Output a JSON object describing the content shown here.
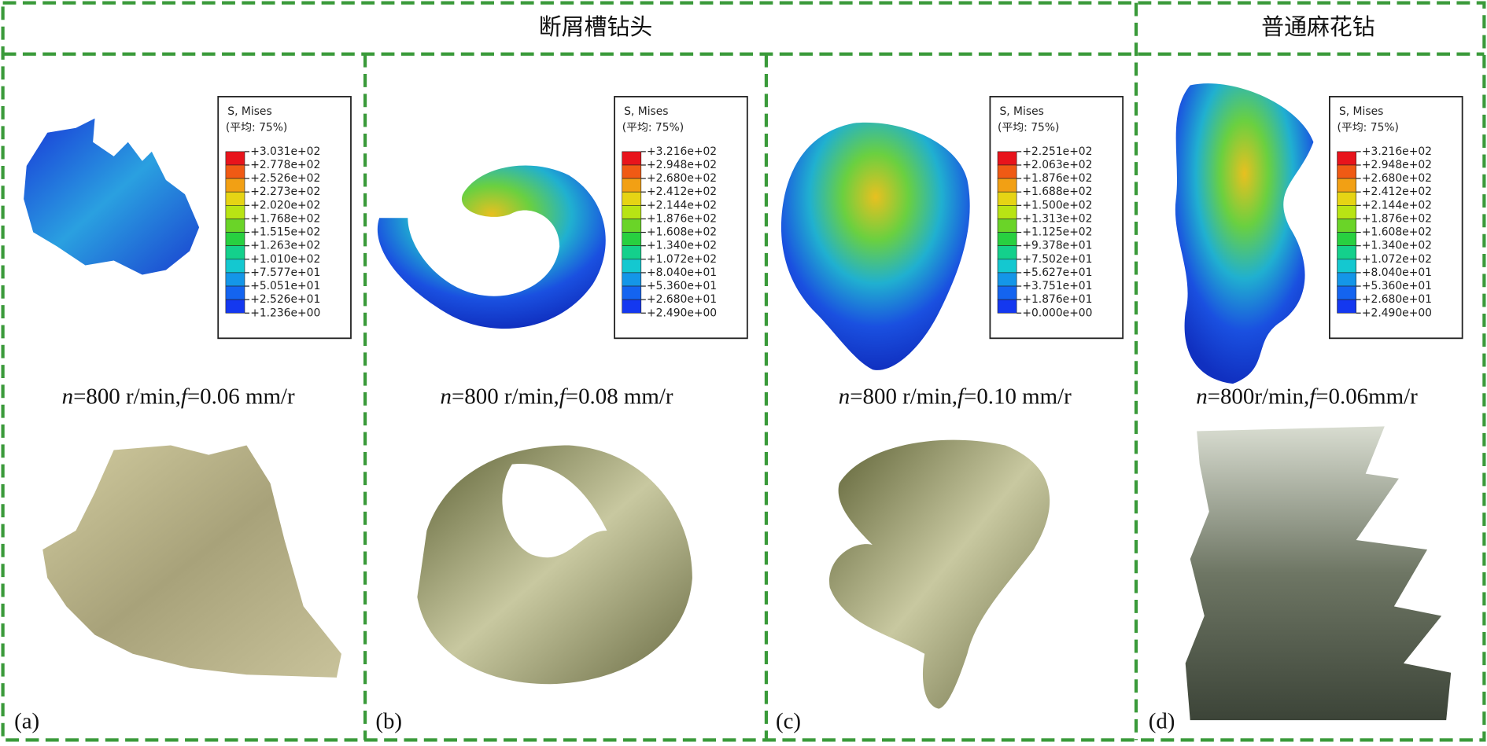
{
  "header": {
    "left_title": "断屑槽钻头",
    "right_title": "普通麻花钻"
  },
  "panels": [
    {
      "label": "(a)",
      "legend": {
        "title": "S, Mises",
        "subtitle": "(平均: 75%)",
        "values": [
          "+3.031e+02",
          "+2.778e+02",
          "+2.526e+02",
          "+2.273e+02",
          "+2.020e+02",
          "+1.768e+02",
          "+1.515e+02",
          "+1.263e+02",
          "+1.010e+02",
          "+7.577e+01",
          "+5.051e+01",
          "+2.526e+01",
          "+1.236e+00"
        ]
      },
      "condition": [
        "n",
        "=800 r/min,",
        "f",
        "=0.06 mm/r"
      ]
    },
    {
      "label": "(b)",
      "legend": {
        "title": "S, Mises",
        "subtitle": "(平均: 75%)",
        "values": [
          "+3.216e+02",
          "+2.948e+02",
          "+2.680e+02",
          "+2.412e+02",
          "+2.144e+02",
          "+1.876e+02",
          "+1.608e+02",
          "+1.340e+02",
          "+1.072e+02",
          "+8.040e+01",
          "+5.360e+01",
          "+2.680e+01",
          "+2.490e+00"
        ]
      },
      "condition": [
        "n",
        "=800 r/min,",
        "f",
        "=0.08 mm/r"
      ]
    },
    {
      "label": "(c)",
      "legend": {
        "title": "S, Mises",
        "subtitle": "(平均: 75%)",
        "values": [
          "+2.251e+02",
          "+2.063e+02",
          "+1.876e+02",
          "+1.688e+02",
          "+1.500e+02",
          "+1.313e+02",
          "+1.125e+02",
          "+9.378e+01",
          "+7.502e+01",
          "+5.627e+01",
          "+3.751e+01",
          "+1.876e+01",
          "+0.000e+00"
        ]
      },
      "condition": [
        "n",
        "=800 r/min,",
        "f",
        "=0.10 mm/r"
      ]
    },
    {
      "label": "(d)",
      "legend": {
        "title": "S, Mises",
        "subtitle": "(平均: 75%)",
        "values": [
          "+3.216e+02",
          "+2.948e+02",
          "+2.680e+02",
          "+2.412e+02",
          "+2.144e+02",
          "+1.876e+02",
          "+1.608e+02",
          "+1.340e+02",
          "+1.072e+02",
          "+8.040e+01",
          "+5.360e+01",
          "+2.680e+01",
          "+2.490e+00"
        ]
      },
      "condition": [
        "n",
        "=800r/min,",
        "f",
        "=0.06mm/r"
      ]
    }
  ]
}
